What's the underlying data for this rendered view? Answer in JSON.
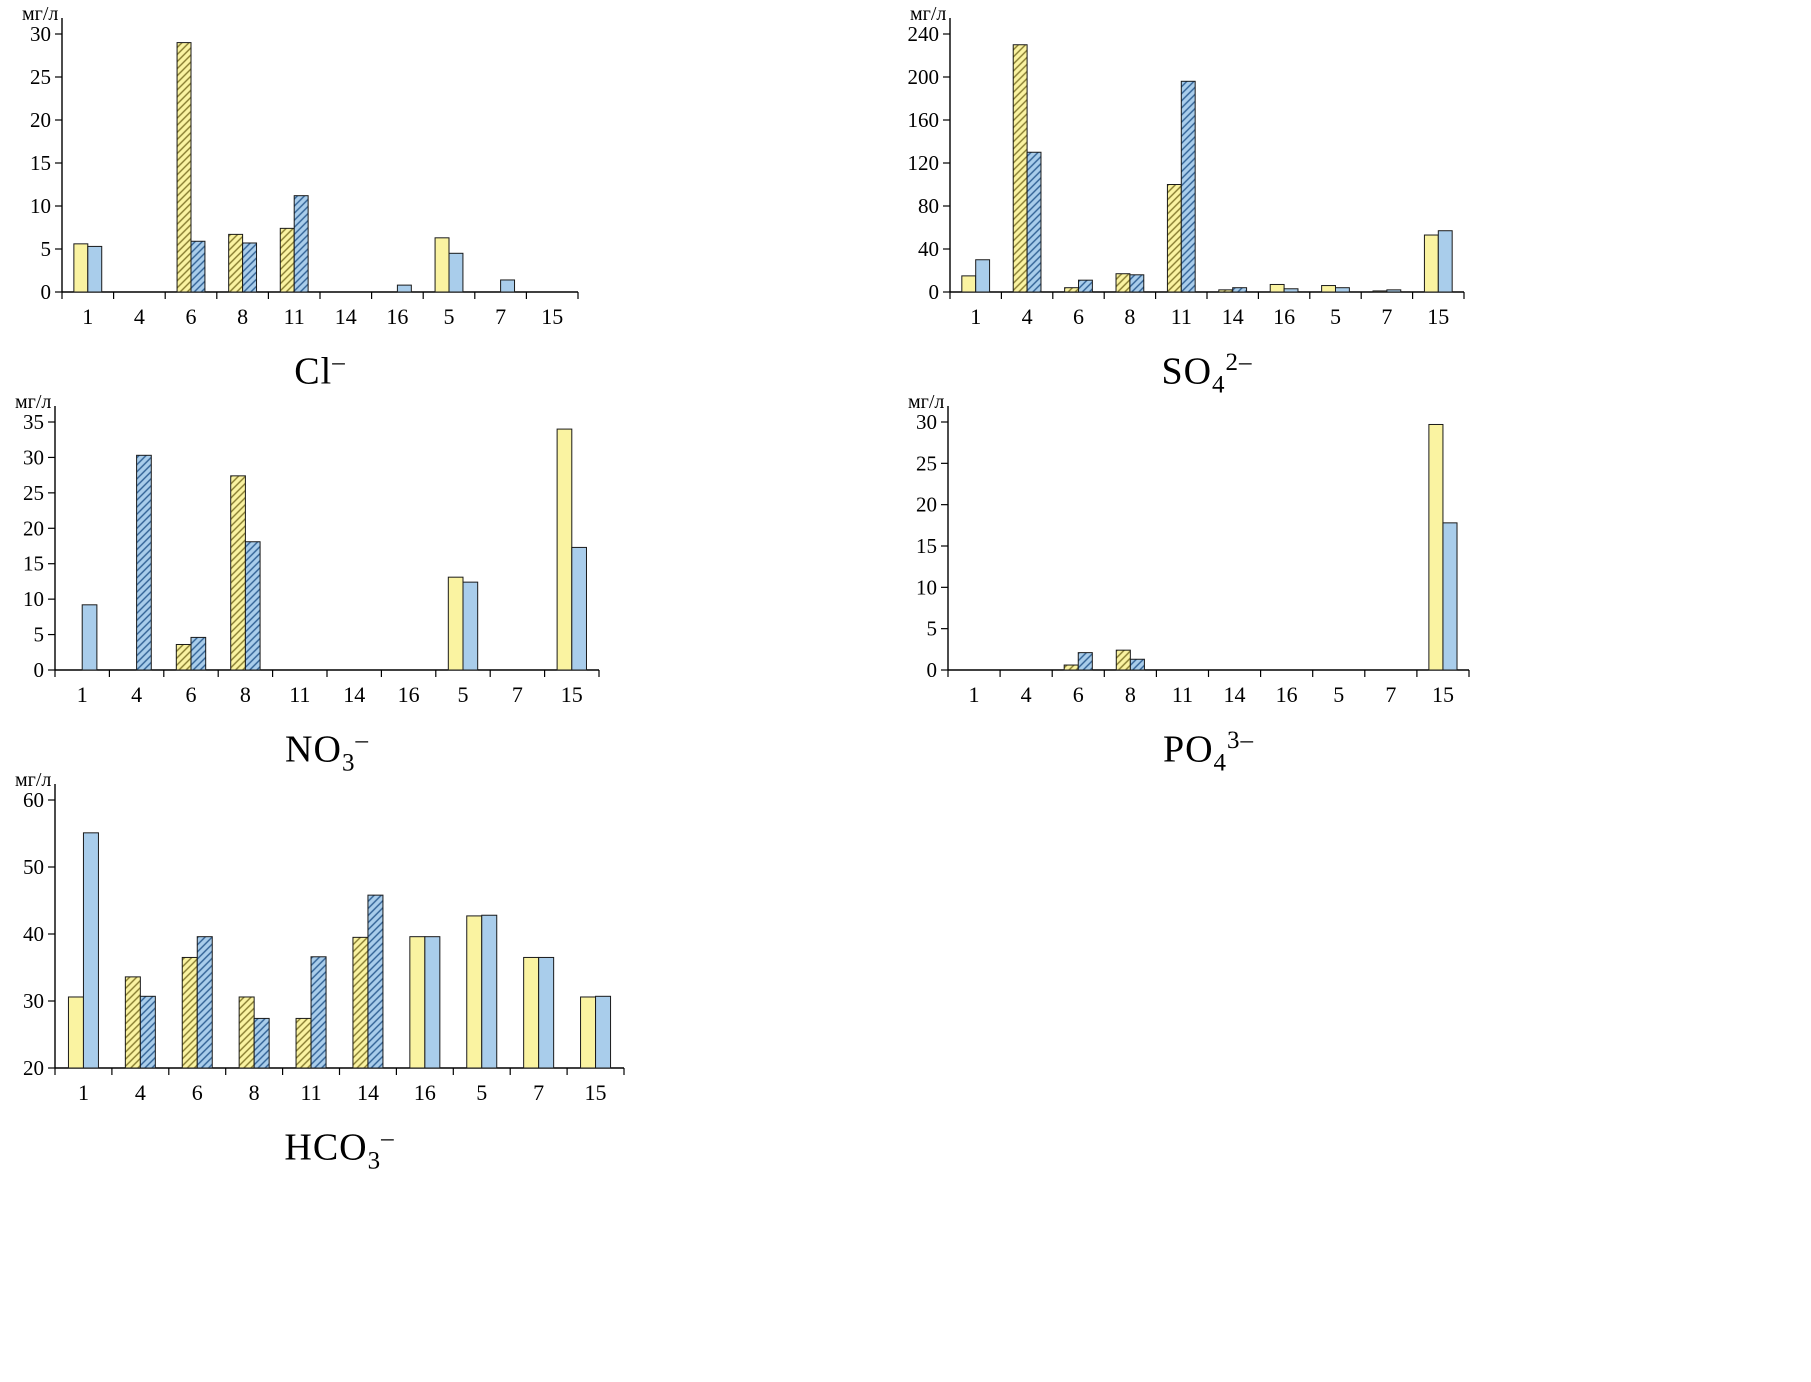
{
  "colors": {
    "series1_fill": "#FAF3A1",
    "series1_hatch": "#857A2E",
    "series2_fill": "#A9CDEB",
    "series2_hatch": "#2F6094",
    "axis": "#000000",
    "bar_outline": "#1A1A1A"
  },
  "hatched_categories": [
    "4",
    "6",
    "8",
    "11",
    "14"
  ],
  "chart_data": [
    {
      "id": "cl",
      "type": "bar",
      "title": {
        "text": "Cl–",
        "base": "Cl",
        "sub": "",
        "sup": "–"
      },
      "ylabel": "мг/л",
      "ylim": [
        0,
        30
      ],
      "ystep": 5,
      "legend": "none",
      "grid": false,
      "categories": [
        "1",
        "4",
        "6",
        "8",
        "11",
        "14",
        "16",
        "5",
        "7",
        "15"
      ],
      "series": [
        {
          "name": "series-1-yellow",
          "values": [
            5.6,
            0,
            29,
            6.7,
            7.4,
            0,
            0,
            6.3,
            0,
            0
          ]
        },
        {
          "name": "series-2-blue",
          "values": [
            5.3,
            0,
            5.9,
            5.7,
            11.2,
            0,
            0.8,
            4.5,
            1.4,
            0
          ]
        }
      ]
    },
    {
      "id": "so4",
      "type": "bar",
      "title": {
        "text": "SO42–",
        "base": "SO",
        "sub": "4",
        "sup": "2–"
      },
      "ylabel": "мг/л",
      "ylim": [
        0,
        240
      ],
      "ystep": 40,
      "legend": "none",
      "grid": false,
      "categories": [
        "1",
        "4",
        "6",
        "8",
        "11",
        "14",
        "16",
        "5",
        "7",
        "15"
      ],
      "series": [
        {
          "name": "series-1-yellow",
          "values": [
            15,
            230,
            4,
            17,
            100,
            2,
            7,
            6,
            1,
            53
          ]
        },
        {
          "name": "series-2-blue",
          "values": [
            30,
            130,
            11,
            16,
            196,
            4,
            3,
            4,
            2,
            57
          ]
        }
      ]
    },
    {
      "id": "no3",
      "type": "bar",
      "title": {
        "text": "NO3–",
        "base": "NO",
        "sub": "3",
        "sup": "–"
      },
      "ylabel": "мг/л",
      "ylim": [
        0,
        35
      ],
      "ystep": 5,
      "legend": "none",
      "grid": false,
      "categories": [
        "1",
        "4",
        "6",
        "8",
        "11",
        "14",
        "16",
        "5",
        "7",
        "15"
      ],
      "series": [
        {
          "name": "series-1-yellow",
          "values": [
            0,
            0,
            3.6,
            27.4,
            0,
            0,
            0,
            13.1,
            0,
            34
          ]
        },
        {
          "name": "series-2-blue",
          "values": [
            9.2,
            30.3,
            4.6,
            18.1,
            0,
            0,
            0,
            12.4,
            0,
            17.3
          ]
        }
      ]
    },
    {
      "id": "po4",
      "type": "bar",
      "title": {
        "text": "PO43–",
        "base": "PO",
        "sub": "4",
        "sup": "3–"
      },
      "ylabel": "мг/л",
      "ylim": [
        0,
        30
      ],
      "ystep": 5,
      "legend": "none",
      "grid": false,
      "categories": [
        "1",
        "4",
        "6",
        "8",
        "11",
        "14",
        "16",
        "5",
        "7",
        "15"
      ],
      "series": [
        {
          "name": "series-1-yellow",
          "values": [
            0,
            0,
            0.6,
            2.4,
            0,
            0,
            0,
            0,
            0,
            29.7
          ]
        },
        {
          "name": "series-2-blue",
          "values": [
            0,
            0,
            2.1,
            1.3,
            0,
            0,
            0,
            0,
            0,
            17.8
          ]
        }
      ]
    },
    {
      "id": "hco3",
      "type": "bar",
      "title": {
        "text": "HCO3–",
        "base": "HCO",
        "sub": "3",
        "sup": "–"
      },
      "ylabel": "мг/л",
      "ylim": [
        20,
        60
      ],
      "ystep": 10,
      "legend": "none",
      "grid": false,
      "categories": [
        "1",
        "4",
        "6",
        "8",
        "11",
        "14",
        "16",
        "5",
        "7",
        "15"
      ],
      "series": [
        {
          "name": "series-1-yellow",
          "values": [
            30.6,
            33.6,
            36.5,
            30.6,
            27.4,
            39.5,
            39.6,
            42.7,
            36.5,
            30.6
          ]
        },
        {
          "name": "series-2-blue",
          "values": [
            55.1,
            30.7,
            39.6,
            27.4,
            36.6,
            45.8,
            39.6,
            42.8,
            36.5,
            30.7
          ]
        }
      ]
    }
  ]
}
